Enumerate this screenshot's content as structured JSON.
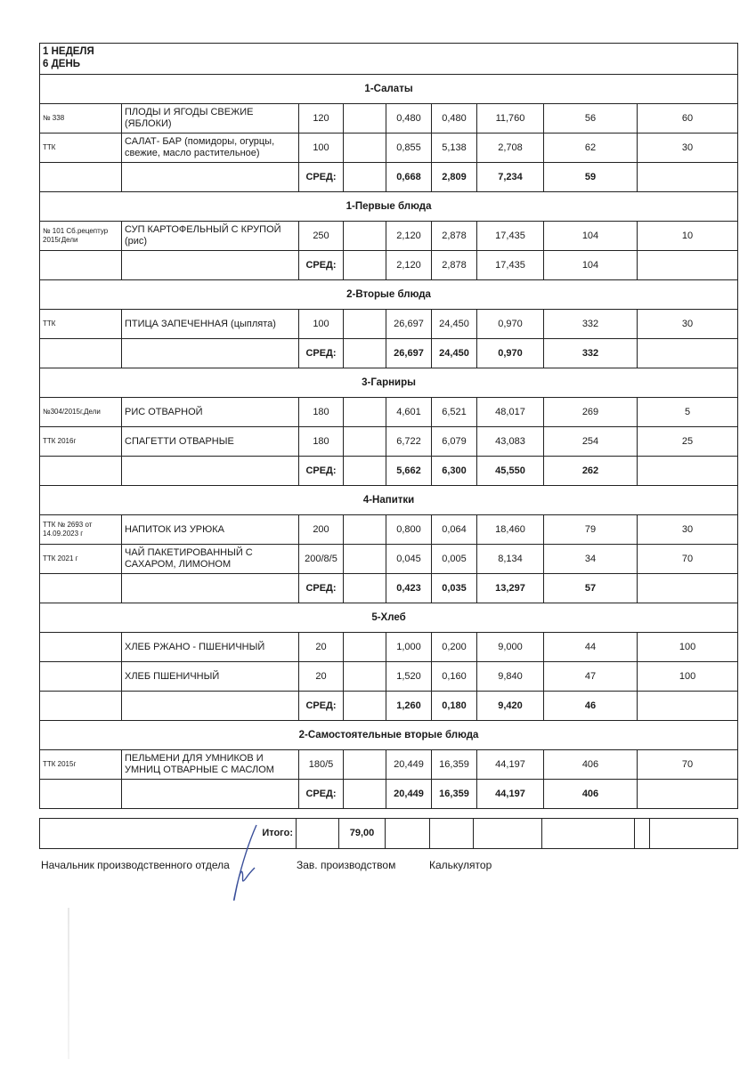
{
  "header": {
    "week": "1 НЕДЕЛЯ",
    "day": "6 ДЕНЬ"
  },
  "sections": [
    {
      "title": "1-Салаты",
      "rows": [
        {
          "code": "№ 338",
          "name": "ПЛОДЫ И ЯГОДЫ СВЕЖИЕ (ЯБЛОКИ)",
          "portion": "120",
          "extra": "",
          "p": "0,480",
          "f": "0,480",
          "c": "11,760",
          "kcal": "56",
          "price": "60"
        },
        {
          "code": "ТТК",
          "name": "САЛАТ- БАР (помидоры, огурцы, свежие, масло растительное)",
          "portion": "100",
          "extra": "",
          "p": "0,855",
          "f": "5,138",
          "c": "2,708",
          "kcal": "62",
          "price": "30"
        }
      ],
      "avg": {
        "label": "СРЕД:",
        "p": "0,668",
        "f": "2,809",
        "c": "7,234",
        "kcal": "59"
      }
    },
    {
      "title": "1-Первые блюда",
      "rows": [
        {
          "code": "№ 101 Сб.рецептур 2015гДели",
          "name": "СУП КАРТОФЕЛЬНЫЙ С КРУПОЙ (рис)",
          "portion": "250",
          "extra": "",
          "p": "2,120",
          "f": "2,878",
          "c": "17,435",
          "kcal": "104",
          "price": "10"
        }
      ],
      "avg": {
        "label": "СРЕД:",
        "p": "2,120",
        "f": "2,878",
        "c": "17,435",
        "kcal": "104"
      },
      "avg_plain": true
    },
    {
      "title": "2-Вторые блюда",
      "rows": [
        {
          "code": "ТТК",
          "name": "ПТИЦА ЗАПЕЧЕННАЯ (цыплята)",
          "portion": "100",
          "extra": "",
          "p": "26,697",
          "f": "24,450",
          "c": "0,970",
          "kcal": "332",
          "price": "30"
        }
      ],
      "avg": {
        "label": "СРЕД:",
        "p": "26,697",
        "f": "24,450",
        "c": "0,970",
        "kcal": "332"
      }
    },
    {
      "title": "3-Гарниры",
      "rows": [
        {
          "code": "№304/2015г,Дели",
          "name": "РИС ОТВАРНОЙ",
          "portion": "180",
          "extra": "",
          "p": "4,601",
          "f": "6,521",
          "c": "48,017",
          "kcal": "269",
          "price": "5"
        },
        {
          "code": "ТТК 2016г",
          "name": "СПАГЕТТИ ОТВАРНЫЕ",
          "portion": "180",
          "extra": "",
          "p": "6,722",
          "f": "6,079",
          "c": "43,083",
          "kcal": "254",
          "price": "25"
        }
      ],
      "avg": {
        "label": "СРЕД:",
        "p": "5,662",
        "f": "6,300",
        "c": "45,550",
        "kcal": "262"
      }
    },
    {
      "title": "4-Напитки",
      "rows": [
        {
          "code": "ТТК № 2693 от 14.09.2023 г",
          "name": "НАПИТОК ИЗ УРЮКА",
          "portion": "200",
          "extra": "",
          "p": "0,800",
          "f": "0,064",
          "c": "18,460",
          "kcal": "79",
          "price": "30"
        },
        {
          "code": "ТТК 2021 г",
          "name": "ЧАЙ ПАКЕТИРОВАННЫЙ С САХАРОМ, ЛИМОНОМ",
          "portion": "200/8/5",
          "extra": "",
          "p": "0,045",
          "f": "0,005",
          "c": "8,134",
          "kcal": "34",
          "price": "70"
        }
      ],
      "avg": {
        "label": "СРЕД:",
        "p": "0,423",
        "f": "0,035",
        "c": "13,297",
        "kcal": "57"
      }
    },
    {
      "title": "5-Хлеб",
      "rows": [
        {
          "code": "",
          "name": "ХЛЕБ РЖАНО - ПШЕНИЧНЫЙ",
          "portion": "20",
          "extra": "",
          "p": "1,000",
          "f": "0,200",
          "c": "9,000",
          "kcal": "44",
          "price": "100"
        },
        {
          "code": "",
          "name": "ХЛЕБ ПШЕНИЧНЫЙ",
          "portion": "20",
          "extra": "",
          "p": "1,520",
          "f": "0,160",
          "c": "9,840",
          "kcal": "47",
          "price": "100"
        }
      ],
      "avg": {
        "label": "СРЕД:",
        "p": "1,260",
        "f": "0,180",
        "c": "9,420",
        "kcal": "46"
      }
    },
    {
      "title": "2-Самостоятельные вторые блюда",
      "rows": [
        {
          "code": "ТТК 2015г",
          "name": "ПЕЛЬМЕНИ ДЛЯ УМНИКОВ И УМНИЦ ОТВАРНЫЕ С МАСЛОМ",
          "portion": "180/5",
          "extra": "",
          "p": "20,449",
          "f": "16,359",
          "c": "44,197",
          "kcal": "406",
          "price": "70"
        }
      ],
      "avg": {
        "label": "СРЕД:",
        "p": "20,449",
        "f": "16,359",
        "c": "44,197",
        "kcal": "406"
      }
    }
  ],
  "total": {
    "label": "Итого:",
    "value": "79,00"
  },
  "signatures": {
    "head": "Начальник производственного отдела",
    "production": "Зав. производством",
    "calculator": "Калькулятор"
  }
}
